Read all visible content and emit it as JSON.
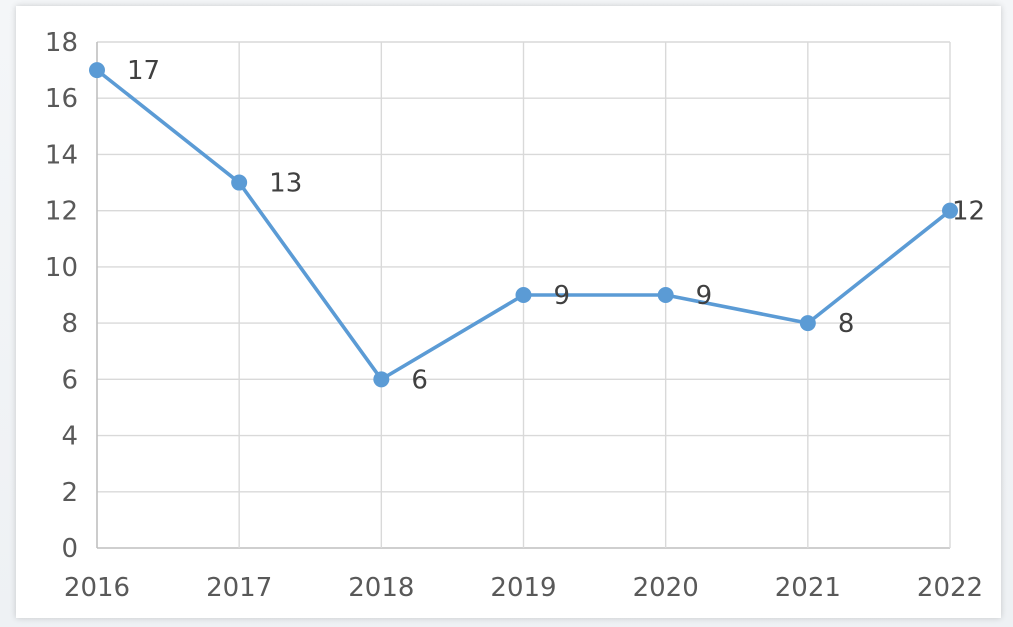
{
  "chart_data": {
    "type": "line",
    "title": "",
    "xlabel": "",
    "ylabel": "",
    "categories": [
      "2016",
      "2017",
      "2018",
      "2019",
      "2020",
      "2021",
      "2022"
    ],
    "series": [
      {
        "values": [
          17,
          13,
          6,
          9,
          9,
          8,
          12
        ],
        "color": "#5b9bd5"
      }
    ],
    "ylim": [
      0,
      18
    ],
    "yticks": [
      0,
      2,
      4,
      6,
      8,
      10,
      12,
      14,
      16,
      18
    ],
    "grid": true,
    "legend": "none",
    "data_labels": true
  }
}
